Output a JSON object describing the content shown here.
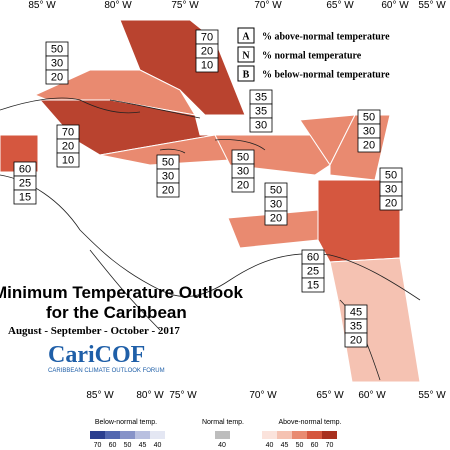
{
  "longitudes_top": [
    "85° W",
    "80° W",
    "75° W",
    "70° W",
    "65° W",
    "60° W",
    "55° W"
  ],
  "longitudes_bottom": [
    "85° W",
    "80° W",
    "75° W",
    "70° W",
    "65° W",
    "60° W",
    "55° W"
  ],
  "legend": [
    {
      "key": "A",
      "text": "% above-normal temperature"
    },
    {
      "key": "N",
      "text": "% normal temperature"
    },
    {
      "key": "B",
      "text": "% below-normal temperature"
    }
  ],
  "regions": [
    {
      "values": [
        70,
        20,
        10
      ],
      "color": "#b9432f"
    },
    {
      "values": [
        50,
        30,
        20
      ],
      "color": "#e98a70"
    },
    {
      "values": [
        70,
        20,
        10
      ],
      "color": "#b9432f"
    },
    {
      "values": [
        35,
        35,
        30
      ],
      "color": "#ffffff"
    },
    {
      "values": [
        50,
        30,
        20
      ],
      "color": "#e98a70"
    },
    {
      "values": [
        50,
        30,
        20
      ],
      "color": "#e98a70"
    },
    {
      "values": [
        50,
        30,
        20
      ],
      "color": "#e98a70"
    },
    {
      "values": [
        50,
        30,
        20
      ],
      "color": "#e98a70"
    },
    {
      "values": [
        50,
        30,
        20
      ],
      "color": "#e98a70"
    },
    {
      "values": [
        60,
        25,
        15
      ],
      "color": "#d5573f"
    },
    {
      "values": [
        60,
        25,
        15
      ],
      "color": "#d5573f"
    },
    {
      "values": [
        45,
        35,
        20
      ],
      "color": "#f5c2b2"
    }
  ],
  "title": "Minimum Temperature Outlook",
  "title2": "for the Caribbean",
  "subtitle": "August - September - October - 2017",
  "logo": "CariCOF",
  "logo_sub": "CARIBBEAN CLIMATE OUTLOOK FORUM",
  "colorbar": {
    "below_label": "Below-normal temp.",
    "normal_label": "Normal temp.",
    "above_label": "Above-normal temp.",
    "below": [
      {
        "value": 70,
        "color": "#2b3f8f"
      },
      {
        "value": 60,
        "color": "#5368b0"
      },
      {
        "value": 50,
        "color": "#8793c8"
      },
      {
        "value": 45,
        "color": "#b9c0e0"
      },
      {
        "value": 40,
        "color": "#e4e7f3"
      }
    ],
    "normal": {
      "value": 40,
      "color": "#bdbdbd"
    },
    "above": [
      {
        "value": 40,
        "color": "#fbe3dc"
      },
      {
        "value": 45,
        "color": "#f5c2b2"
      },
      {
        "value": 50,
        "color": "#e98a70"
      },
      {
        "value": 60,
        "color": "#d5573f"
      },
      {
        "value": 70,
        "color": "#a8301f"
      }
    ]
  }
}
